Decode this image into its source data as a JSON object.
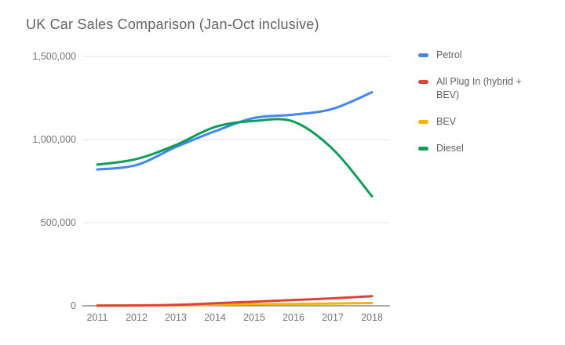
{
  "title": "UK Car Sales Comparison (Jan-Oct inclusive)",
  "chart_data": {
    "type": "line",
    "smooth": true,
    "grid": true,
    "legend_position": "right",
    "x": [
      "2011",
      "2012",
      "2013",
      "2014",
      "2015",
      "2016",
      "2017",
      "2018"
    ],
    "series": [
      {
        "name": "Petrol",
        "color": "#4285F4",
        "values": [
          820000,
          847000,
          955000,
          1050000,
          1130000,
          1150000,
          1185000,
          1285000
        ]
      },
      {
        "name": "All Plug In (hybrid + BEV)",
        "color": "#DB4437",
        "values": [
          1200,
          2500,
          5500,
          15000,
          25000,
          35000,
          45000,
          58000
        ]
      },
      {
        "name": "BEV",
        "color": "#F4B400",
        "values": [
          1000,
          1400,
          2700,
          6500,
          9500,
          11000,
          13500,
          16500
        ]
      },
      {
        "name": "Diesel",
        "color": "#0F9D58",
        "values": [
          849000,
          883000,
          967000,
          1076000,
          1112000,
          1108000,
          943000,
          659000
        ]
      }
    ],
    "ylim": [
      0,
      1500000
    ],
    "yticks": [
      0,
      500000,
      1000000,
      1500000
    ],
    "ytick_labels": [
      "0",
      "500,000",
      "1,000,000",
      "1,500,000"
    ],
    "xlabel": "",
    "ylabel": "",
    "colors": {
      "title_text": "#616161",
      "axis_text": "#757575",
      "gridline": "#e6e6e6",
      "baseline": "#757575",
      "background": "#ffffff"
    }
  }
}
